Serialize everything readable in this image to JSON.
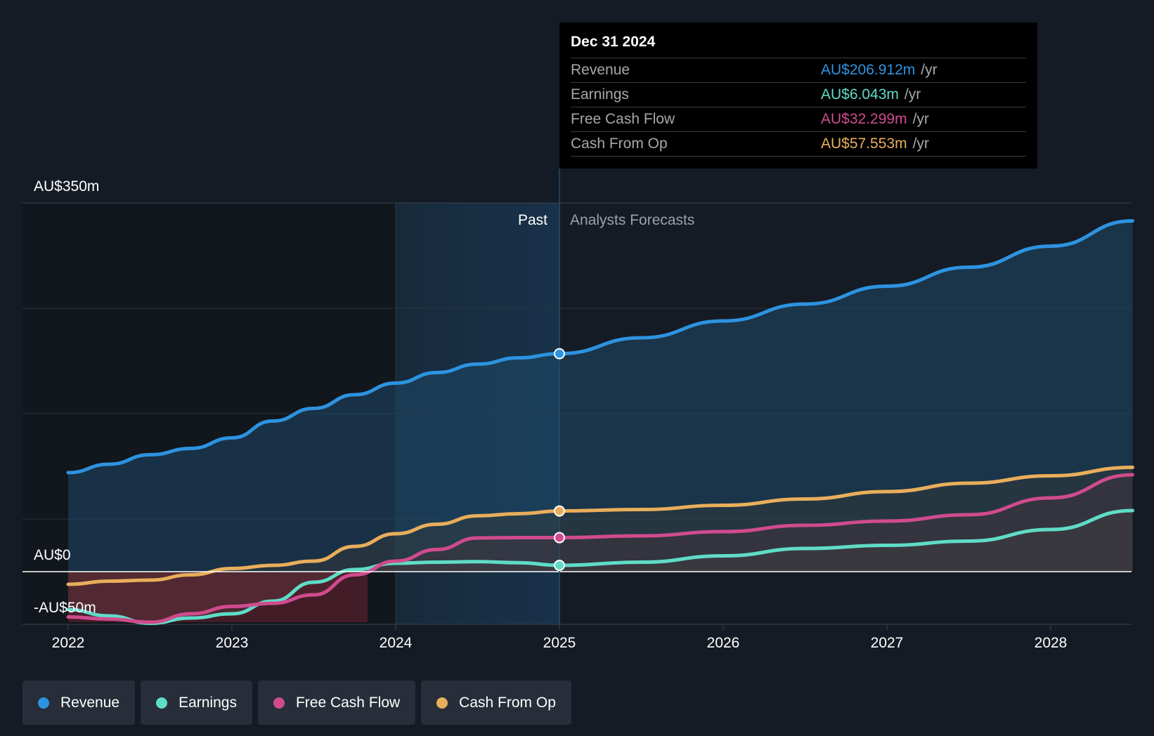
{
  "chart_data": {
    "type": "area",
    "y_axis": {
      "top_label": "AU$350m",
      "zero_label": "AU$0",
      "bottom_label": "-AU$50m",
      "ylim": [
        -50,
        350
      ]
    },
    "x_axis": {
      "ticks": [
        "2022",
        "2023",
        "2024",
        "2025",
        "2026",
        "2027",
        "2028"
      ],
      "xlim": [
        2021.73,
        2028.5
      ]
    },
    "past_label": "Past",
    "forecast_label": "Analysts Forecasts",
    "divider_x": 2025.0,
    "highlight_start": 2024.0,
    "series": [
      {
        "name": "Revenue",
        "color": "#2d93e0",
        "fill": "#1f4868",
        "points": [
          [
            2022.0,
            94
          ],
          [
            2022.25,
            102
          ],
          [
            2022.5,
            111
          ],
          [
            2022.75,
            117
          ],
          [
            2023.0,
            127
          ],
          [
            2023.25,
            143
          ],
          [
            2023.5,
            155
          ],
          [
            2023.75,
            168
          ],
          [
            2024.0,
            179
          ],
          [
            2024.25,
            189
          ],
          [
            2024.5,
            197
          ],
          [
            2024.75,
            203
          ],
          [
            2025.0,
            206.9
          ],
          [
            2025.5,
            222
          ],
          [
            2026.0,
            238
          ],
          [
            2026.5,
            254
          ],
          [
            2027.0,
            271
          ],
          [
            2027.5,
            289
          ],
          [
            2028.0,
            309
          ],
          [
            2028.5,
            333
          ]
        ]
      },
      {
        "name": "Earnings",
        "color": "#5fdcc7",
        "fill": "#3b4b55",
        "points": [
          [
            2022.0,
            -36
          ],
          [
            2022.25,
            -42
          ],
          [
            2022.5,
            -49
          ],
          [
            2022.75,
            -44
          ],
          [
            2023.0,
            -40
          ],
          [
            2023.25,
            -28
          ],
          [
            2023.5,
            -10
          ],
          [
            2023.75,
            2
          ],
          [
            2024.0,
            8
          ],
          [
            2024.25,
            9
          ],
          [
            2024.5,
            9.5
          ],
          [
            2024.75,
            8.5
          ],
          [
            2025.0,
            6.0
          ],
          [
            2025.5,
            9
          ],
          [
            2026.0,
            15
          ],
          [
            2026.5,
            22
          ],
          [
            2027.0,
            25
          ],
          [
            2027.5,
            29
          ],
          [
            2028.0,
            40
          ],
          [
            2028.5,
            58
          ]
        ]
      },
      {
        "name": "Free Cash Flow",
        "color": "#d04b8e",
        "fill": "#5a2a3a",
        "points": [
          [
            2022.0,
            -43
          ],
          [
            2022.25,
            -45
          ],
          [
            2022.5,
            -48
          ],
          [
            2022.75,
            -40
          ],
          [
            2023.0,
            -33
          ],
          [
            2023.25,
            -30
          ],
          [
            2023.5,
            -22
          ],
          [
            2023.75,
            -3
          ],
          [
            2024.0,
            10
          ],
          [
            2024.25,
            21
          ],
          [
            2024.5,
            32
          ],
          [
            2024.75,
            32.3
          ],
          [
            2025.0,
            32.3
          ],
          [
            2025.5,
            34
          ],
          [
            2026.0,
            38
          ],
          [
            2026.5,
            44
          ],
          [
            2027.0,
            48
          ],
          [
            2027.5,
            54
          ],
          [
            2028.0,
            70
          ],
          [
            2028.5,
            92
          ]
        ]
      },
      {
        "name": "Cash From Op",
        "color": "#e9ae5b",
        "fill": "#3d3b33",
        "points": [
          [
            2022.0,
            -12
          ],
          [
            2022.25,
            -9
          ],
          [
            2022.5,
            -8
          ],
          [
            2022.75,
            -3
          ],
          [
            2023.0,
            3
          ],
          [
            2023.25,
            6
          ],
          [
            2023.5,
            10
          ],
          [
            2023.75,
            24
          ],
          [
            2024.0,
            36
          ],
          [
            2024.25,
            45
          ],
          [
            2024.5,
            53
          ],
          [
            2024.75,
            55
          ],
          [
            2025.0,
            57.6
          ],
          [
            2025.5,
            59
          ],
          [
            2026.0,
            63
          ],
          [
            2026.5,
            69
          ],
          [
            2027.0,
            76
          ],
          [
            2027.5,
            84
          ],
          [
            2028.0,
            91
          ],
          [
            2028.5,
            99
          ]
        ]
      }
    ],
    "tooltip": {
      "date": "Dec 31 2024",
      "rows": [
        {
          "label": "Revenue",
          "value": "AU$206.912m",
          "unit": "/yr",
          "color": "#2d93e0"
        },
        {
          "label": "Earnings",
          "value": "AU$6.043m",
          "unit": "/yr",
          "color": "#5fdcc7"
        },
        {
          "label": "Free Cash Flow",
          "value": "AU$32.299m",
          "unit": "/yr",
          "color": "#d04b8e"
        },
        {
          "label": "Cash From Op",
          "value": "AU$57.553m",
          "unit": "/yr",
          "color": "#e9ae5b"
        }
      ]
    }
  },
  "legend": [
    {
      "label": "Revenue",
      "color": "#2d93e0"
    },
    {
      "label": "Earnings",
      "color": "#5fdcc7"
    },
    {
      "label": "Free Cash Flow",
      "color": "#d04b8e"
    },
    {
      "label": "Cash From Op",
      "color": "#e9ae5b"
    }
  ]
}
